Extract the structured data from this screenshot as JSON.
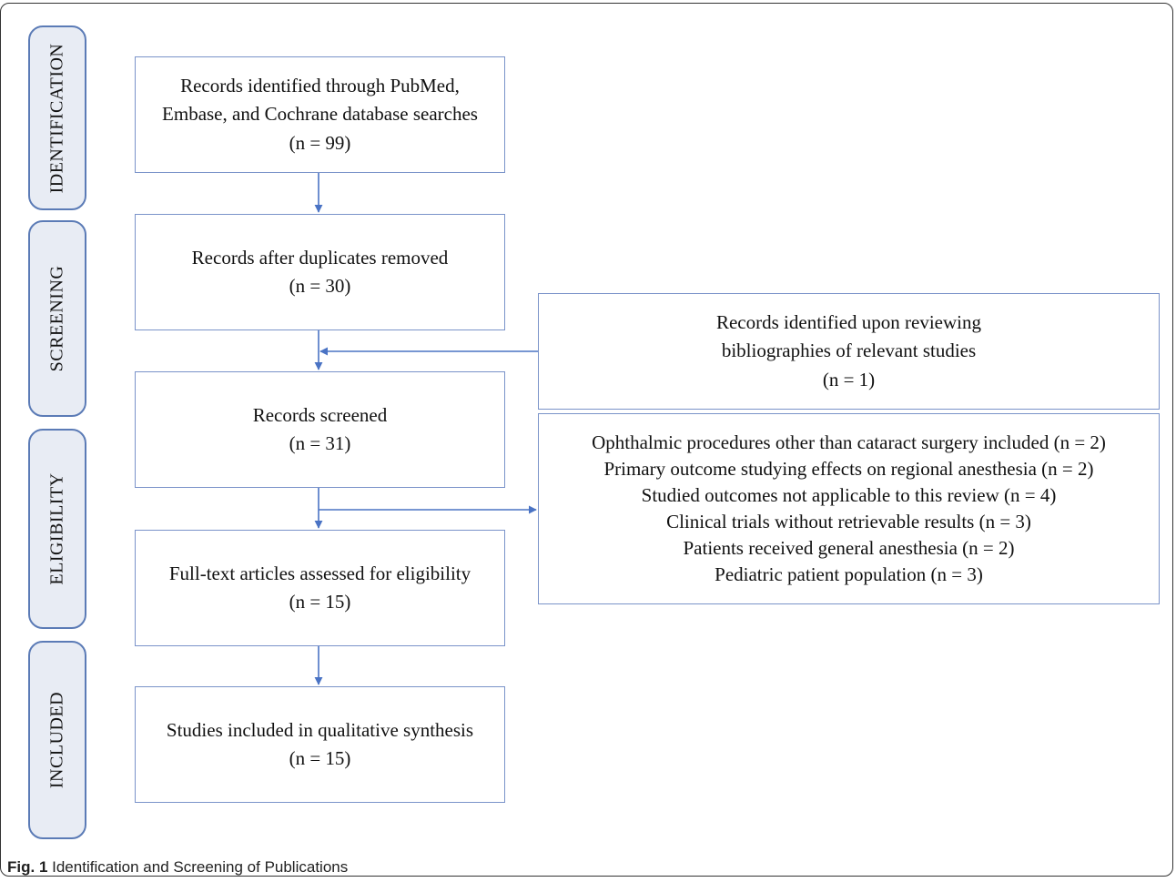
{
  "phases": {
    "identification": "IDENTIFICATION",
    "screening": "SCREENING",
    "eligibility": "ELIGIBILITY",
    "included": "INCLUDED"
  },
  "boxes": {
    "identified": [
      "Records identified through PubMed,",
      "Embase, and Cochrane database searches",
      "(n = 99)"
    ],
    "deduplicated": [
      "Records after duplicates removed",
      "(n = 30)"
    ],
    "additional": [
      "Records identified upon reviewing",
      "bibliographies of relevant studies",
      "(n = 1)"
    ],
    "screened": [
      "Records screened",
      "(n = 31)"
    ],
    "excluded": [
      "Ophthalmic procedures other than cataract surgery included (n = 2)",
      "Primary outcome studying effects on regional anesthesia (n = 2)",
      "Studied outcomes not applicable to this review (n = 4)",
      "Clinical trials without retrievable results (n = 3)",
      "Patients received general anesthesia (n = 2)",
      "Pediatric patient population (n = 3)"
    ],
    "fulltext": [
      "Full-text articles assessed for eligibility",
      "(n = 15)"
    ],
    "included": [
      "Studies included in qualitative synthesis",
      "(n = 15)"
    ]
  },
  "caption": {
    "label": "Fig. 1",
    "text": " Identification and Screening of Publications"
  },
  "colors": {
    "arrow": "#4a73c4",
    "box_border": "#7a93c9",
    "phase_border": "#5b7bb6",
    "phase_fill": "#e8ecf4"
  }
}
